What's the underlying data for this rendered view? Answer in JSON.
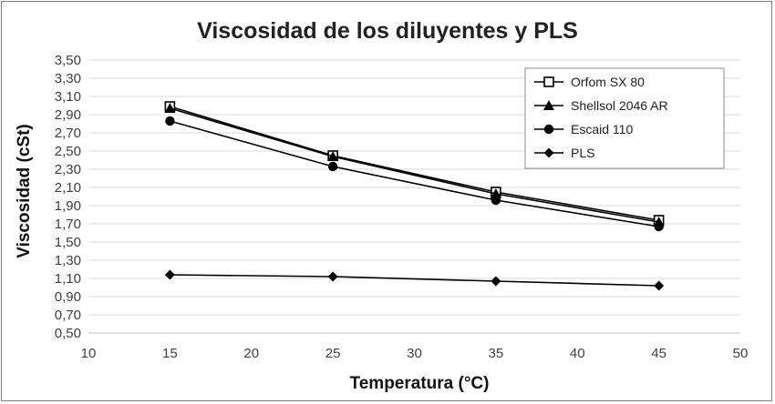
{
  "chart_data": {
    "type": "line",
    "title": "Viscosidad  de los diluyentes y PLS",
    "xlabel": "Temperatura (°C)",
    "ylabel": "Viscosidad (cSt)",
    "x": [
      15,
      25,
      35,
      45
    ],
    "xlim": [
      10,
      50
    ],
    "xticks": [
      "10",
      "15",
      "20",
      "25",
      "30",
      "35",
      "40",
      "45",
      "50"
    ],
    "ylim": [
      0.5,
      3.5
    ],
    "yticks": [
      "0,50",
      "0,70",
      "0,90",
      "1,10",
      "1,30",
      "1,50",
      "1,70",
      "1,90",
      "2,10",
      "2,30",
      "2,50",
      "2,70",
      "2,90",
      "3,10",
      "3,30",
      "3,50"
    ],
    "grid": true,
    "legend_position": "top-right",
    "series": [
      {
        "name": "Orfom SX 80",
        "marker": "open-square",
        "values": [
          2.99,
          2.45,
          2.05,
          1.74
        ]
      },
      {
        "name": "Shellsol 2046 AR",
        "marker": "triangle",
        "values": [
          2.97,
          2.44,
          2.03,
          1.72
        ]
      },
      {
        "name": "Escaid 110",
        "marker": "circle",
        "values": [
          2.83,
          2.33,
          1.96,
          1.67
        ]
      },
      {
        "name": "PLS",
        "marker": "diamond",
        "values": [
          1.14,
          1.12,
          1.07,
          1.02
        ]
      }
    ],
    "colors": {
      "line": "#000000",
      "grid": "#d9d9d9",
      "axis_text": "#404040"
    }
  }
}
